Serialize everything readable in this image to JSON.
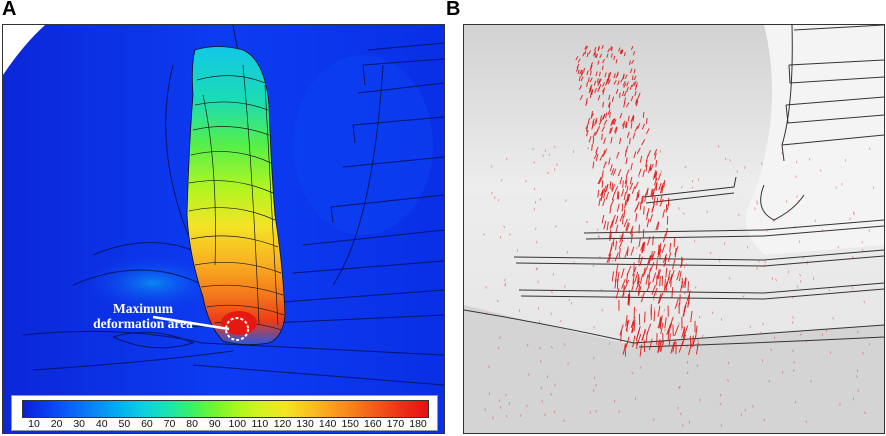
{
  "panels": {
    "a": {
      "letter": "A",
      "annotation_line1": "Maximum",
      "annotation_line2": "deformation area"
    },
    "b": {
      "letter": "B"
    }
  },
  "colorbar": {
    "ticks": [
      "10",
      "20",
      "30",
      "40",
      "50",
      "60",
      "70",
      "80",
      "90",
      "100",
      "110",
      "120",
      "130",
      "140",
      "150",
      "160",
      "170",
      "180"
    ],
    "colors": [
      "#0a1fd8",
      "#0a3ef0",
      "#0a62f7",
      "#0a86f5",
      "#00aef0",
      "#10cde0",
      "#19e2b6",
      "#38ef6b",
      "#6ff530",
      "#a9f71e",
      "#d6f21e",
      "#f3e525",
      "#f9c322",
      "#f99e1f",
      "#f67a1c",
      "#f1531a",
      "#ea2e17",
      "#e50f13"
    ]
  },
  "colors": {
    "panel_a_background": "#0a2fe6",
    "panel_b_background": "#efefef",
    "arrow_color": "#e01010"
  }
}
